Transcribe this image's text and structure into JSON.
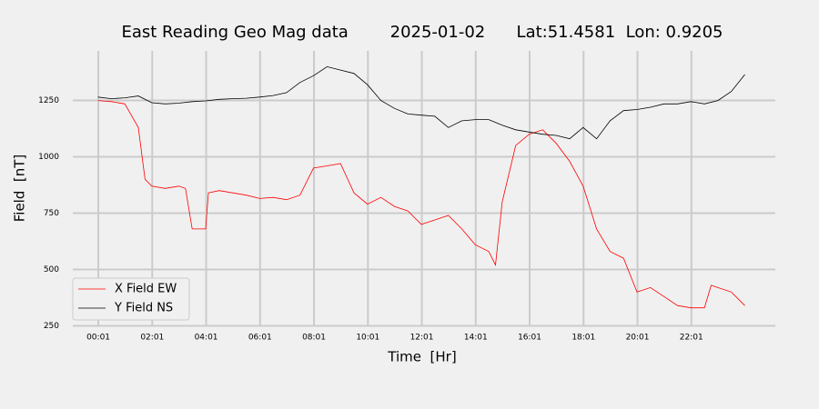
{
  "chart_data": {
    "type": "line",
    "title": "East Reading Geo Mag data        2025-01-02      Lat:51.4581  Lon: 0.9205",
    "xlabel": "Time  [Hr]",
    "ylabel": "Field  [nT]",
    "xlim": [
      -0.93,
      25.13
    ],
    "ylim": [
      240,
      1470
    ],
    "xticks": [
      {
        "value": 0.017,
        "label": "00:01"
      },
      {
        "value": 2.017,
        "label": "02:01"
      },
      {
        "value": 4.017,
        "label": "04:01"
      },
      {
        "value": 6.017,
        "label": "06:01"
      },
      {
        "value": 8.017,
        "label": "08:01"
      },
      {
        "value": 10.017,
        "label": "10:01"
      },
      {
        "value": 12.017,
        "label": "12:01"
      },
      {
        "value": 14.017,
        "label": "14:01"
      },
      {
        "value": 16.017,
        "label": "16:01"
      },
      {
        "value": 18.017,
        "label": "18:01"
      },
      {
        "value": 20.017,
        "label": "20:01"
      },
      {
        "value": 22.017,
        "label": "22:01"
      }
    ],
    "yticks": [
      250,
      500,
      750,
      1000,
      1250
    ],
    "grid": true,
    "legend": "lower left",
    "series": [
      {
        "name": "X Field EW",
        "color": "#ff0000",
        "x": [
          0,
          0.5,
          1,
          1.5,
          1.75,
          2,
          2.5,
          3,
          3.25,
          3.5,
          4,
          4.1,
          4.5,
          5,
          5.5,
          6,
          6.5,
          7,
          7.5,
          8,
          8.5,
          9,
          9.5,
          10,
          10.5,
          11,
          11.5,
          12,
          12.5,
          13,
          13.5,
          14,
          14.5,
          14.75,
          15,
          15.5,
          16,
          16.5,
          17,
          17.5,
          18,
          18.5,
          19,
          19.5,
          20,
          20.5,
          21,
          21.5,
          22,
          22.5,
          22.75,
          23,
          23.5,
          24
        ],
        "values": [
          1250,
          1245,
          1235,
          1130,
          900,
          870,
          860,
          870,
          860,
          680,
          680,
          840,
          850,
          840,
          830,
          815,
          820,
          810,
          830,
          950,
          960,
          970,
          840,
          790,
          820,
          780,
          760,
          700,
          720,
          740,
          680,
          610,
          580,
          520,
          800,
          1050,
          1100,
          1120,
          1060,
          980,
          870,
          680,
          580,
          550,
          400,
          420,
          380,
          340,
          330,
          330,
          430,
          420,
          400,
          340
        ]
      },
      {
        "name": "Y Field NS",
        "color": "#000000",
        "x": [
          0,
          0.5,
          1,
          1.5,
          2,
          2.5,
          3,
          3.5,
          4,
          4.5,
          5,
          5.5,
          6,
          6.5,
          7,
          7.5,
          8,
          8.5,
          9,
          9.5,
          10,
          10.5,
          11,
          11.5,
          12,
          12.5,
          13,
          13.5,
          14,
          14.5,
          15,
          15.5,
          16,
          16.5,
          17,
          17.5,
          18,
          18.5,
          19,
          19.5,
          20,
          20.5,
          21,
          21.5,
          22,
          22.5,
          23,
          23.5,
          24
        ],
        "values": [
          1265,
          1258,
          1262,
          1270,
          1240,
          1235,
          1238,
          1245,
          1248,
          1255,
          1258,
          1260,
          1265,
          1272,
          1285,
          1330,
          1360,
          1400,
          1385,
          1370,
          1320,
          1250,
          1215,
          1190,
          1185,
          1180,
          1130,
          1160,
          1165,
          1165,
          1140,
          1120,
          1110,
          1100,
          1095,
          1080,
          1130,
          1080,
          1160,
          1205,
          1210,
          1220,
          1235,
          1235,
          1245,
          1235,
          1250,
          1290,
          1365
        ]
      }
    ]
  }
}
